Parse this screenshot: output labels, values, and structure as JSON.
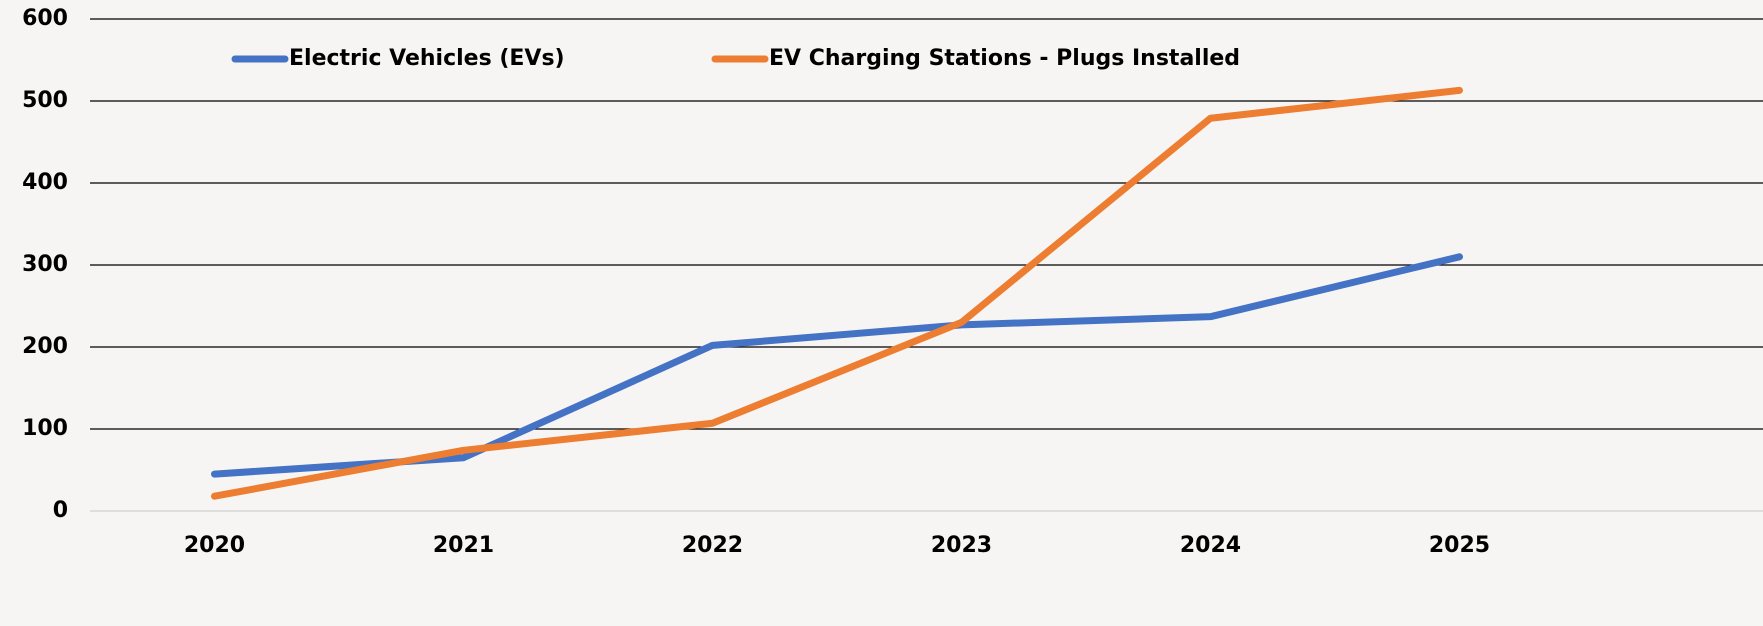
{
  "chart_data": {
    "type": "line",
    "categories": [
      "2020",
      "2021",
      "2022",
      "2023",
      "2024",
      "2025"
    ],
    "series": [
      {
        "name": "Electric Vehicles (EVs)",
        "color": "#4472c4",
        "values": [
          45,
          65,
          202,
          227,
          237,
          310
        ]
      },
      {
        "name": "EV Charging Stations - Plugs Installed",
        "color": "#ed7d31",
        "values": [
          18,
          74,
          107,
          230,
          479,
          513
        ]
      }
    ],
    "ylim": [
      0,
      600
    ],
    "yticks": [
      0,
      100,
      200,
      300,
      400,
      500,
      600
    ],
    "grid": true,
    "legend": "top"
  }
}
